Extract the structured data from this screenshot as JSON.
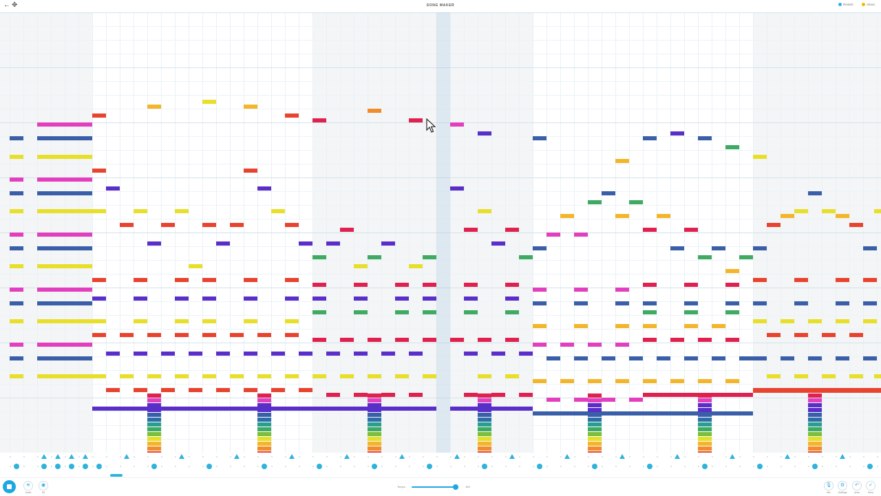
{
  "app": {
    "title": "SONG MAKER",
    "back_icon": "←",
    "move_icon": "✥",
    "restart_label": "Restart",
    "about_label": "About",
    "restart_color": "#2fb3dc",
    "about_color": "#f5b700"
  },
  "palette": [
    "#e8432e",
    "#f08c2c",
    "#f3b62b",
    "#e8df2b",
    "#7cbf3f",
    "#3eaa62",
    "#2a9d91",
    "#2b6ea8",
    "#3a5fa8",
    "#5a2fc9",
    "#b12aa8",
    "#e23fbe",
    "#e0204f"
  ],
  "grid": {
    "columns": 64,
    "visible_columns": 64,
    "note_rows": 32
  },
  "bottom_bar": {
    "play_state": "stop",
    "instrument_label": "Synth",
    "instrument_icon": "≋",
    "percussion_label": "Kit",
    "percussion_icon": "◉",
    "tempo_label": "Tempo",
    "tempo_value": "165",
    "tempo_fraction": 0.95,
    "mic_label": "Mic",
    "mic_icon": "🎙",
    "settings_label": "Settings",
    "settings_icon": "⚙",
    "undo_label": "Undo",
    "undo_icon": "↶",
    "save_label": "Save",
    "save_icon": "✓"
  }
}
